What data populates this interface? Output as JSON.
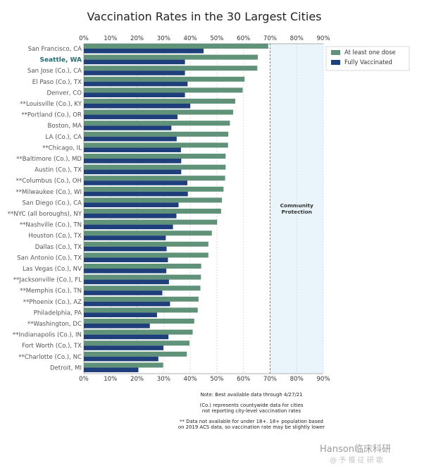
{
  "chart_data": {
    "type": "bar",
    "orientation": "horizontal",
    "title": "Vaccination Rates in the 30 Largest Cities",
    "xlim": [
      0,
      90
    ],
    "x_ticks": [
      "0%",
      "10%",
      "20%",
      "30%",
      "40%",
      "50%",
      "60%",
      "70%",
      "80%",
      "90%"
    ],
    "highlighted_category": "Seattle, WA",
    "categories": [
      "San Francisco, CA",
      "Seattle, WA",
      "San Jose (Co.), CA",
      "El Paso (Co.), TX",
      "Denver, CO",
      "**Louisville (Co.), KY",
      "**Portland (Co.), OR",
      "Boston, MA",
      "LA (Co.), CA",
      "**Chicago, IL",
      "**Baltimore (Co.), MD",
      "Austin (Co.), TX",
      "**Columbus (Co.), OH",
      "**Milwaukee (Co.), WI",
      "San Diego (Co.), CA",
      "**NYC (all boroughs), NY",
      "**Nashville (Co.), TN",
      "Houston (Co.), TX",
      "Dallas (Co.), TX",
      "San Antonio (Co.), TX",
      "Las Vegas (Co.), NV",
      "**Jacksonville (Co.), FL",
      "**Memphis (Co.), TN",
      "**Phoenix (Co.), AZ",
      "Philadelphia, PA",
      "**Washington, DC",
      "**Indianapolis (Co.), IN",
      "Fort Worth (Co.), TX",
      "**Charlotte (Co.), NC",
      "Detroit, MI"
    ],
    "series": [
      {
        "name": "At least one dose",
        "color": "#5f9279",
        "values": [
          69.3,
          65.4,
          65.2,
          60.4,
          59.7,
          56.9,
          56.1,
          54.9,
          54.3,
          54.2,
          53.3,
          53.3,
          53.1,
          52.5,
          51.9,
          51.6,
          50.1,
          48.1,
          46.8,
          46.8,
          44.1,
          44.0,
          43.8,
          43.1,
          42.8,
          41.5,
          40.9,
          39.7,
          38.7,
          29.8
        ]
      },
      {
        "name": "Fully Vaccinated",
        "color": "#1e3f7a",
        "values": [
          45.0,
          38.0,
          38.0,
          39.0,
          38.0,
          40.0,
          35.2,
          32.9,
          34.9,
          36.5,
          36.6,
          36.6,
          38.9,
          39.1,
          35.6,
          34.8,
          33.5,
          30.8,
          31.1,
          31.6,
          31.0,
          32.0,
          29.5,
          32.4,
          27.5,
          24.8,
          31.8,
          29.9,
          28.0,
          20.5
        ]
      }
    ],
    "zone": {
      "label": "Community\nProtection",
      "from": 70,
      "to": 90,
      "fill": "#eaf5fb"
    },
    "legend_placement": "top-right",
    "grid": {
      "vertical": true
    }
  },
  "notes": [
    "Note: Best available data through 4/27/21",
    "(Co.) represents countywide data for cities\nnot reporting city-level vaccination rates",
    "** Data not available for under 18+. 18+ population based\non 2019 ACS data, so vaccination rate may be slightly lower"
  ],
  "watermark": {
    "main": "Hanson临床科研",
    "sub": "@ 予 慢 征 研 歌"
  }
}
